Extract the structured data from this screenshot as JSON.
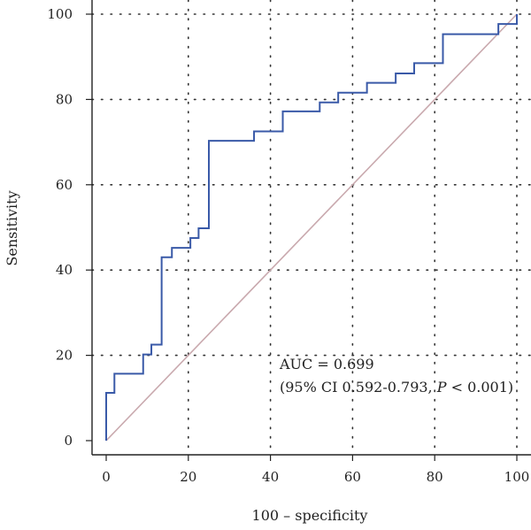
{
  "chart_data": {
    "type": "line",
    "xlabel": "100 – specificity",
    "ylabel": "Sensitivity",
    "xlim": [
      0,
      100
    ],
    "ylim": [
      0,
      100
    ],
    "x_ticks": [
      0,
      20,
      40,
      60,
      80,
      100
    ],
    "y_ticks": [
      0,
      20,
      40,
      60,
      80,
      100
    ],
    "grid": "dotted",
    "series": [
      {
        "type": "step",
        "color": "#3a5aa8",
        "points": [
          [
            0,
            0
          ],
          [
            0,
            11.2
          ],
          [
            2,
            11.2
          ],
          [
            2,
            15.7
          ],
          [
            9,
            15.7
          ],
          [
            9,
            20.2
          ],
          [
            11,
            20.2
          ],
          [
            11,
            22.5
          ],
          [
            13.5,
            22.5
          ],
          [
            13.5,
            43
          ],
          [
            16,
            43
          ],
          [
            16,
            45.2
          ],
          [
            20.5,
            45.2
          ],
          [
            20.5,
            47.5
          ],
          [
            22.5,
            47.5
          ],
          [
            22.5,
            49.8
          ],
          [
            25,
            49.8
          ],
          [
            25,
            70.3
          ],
          [
            36,
            70.3
          ],
          [
            36,
            72.5
          ],
          [
            43,
            72.5
          ],
          [
            43,
            77.2
          ],
          [
            52,
            77.2
          ],
          [
            52,
            79.3
          ],
          [
            56.5,
            79.3
          ],
          [
            56.5,
            81.6
          ],
          [
            63.5,
            81.6
          ],
          [
            63.5,
            83.9
          ],
          [
            70.5,
            83.9
          ],
          [
            70.5,
            86.1
          ],
          [
            75,
            86.1
          ],
          [
            75,
            88.5
          ],
          [
            82,
            88.5
          ],
          [
            82,
            95.3
          ],
          [
            95.5,
            95.3
          ],
          [
            95.5,
            97.7
          ],
          [
            100,
            97.7
          ],
          [
            100,
            100
          ]
        ]
      },
      {
        "type": "reference",
        "color": "#c9a9ae",
        "points": [
          [
            0,
            0
          ],
          [
            100,
            100
          ]
        ]
      }
    ],
    "annotations": {
      "auc": "AUC = 0.699",
      "ci_prefix": "(95% CI 0.592-0.793, ",
      "ci_p": "P",
      "ci_suffix": " < 0.001)"
    }
  }
}
